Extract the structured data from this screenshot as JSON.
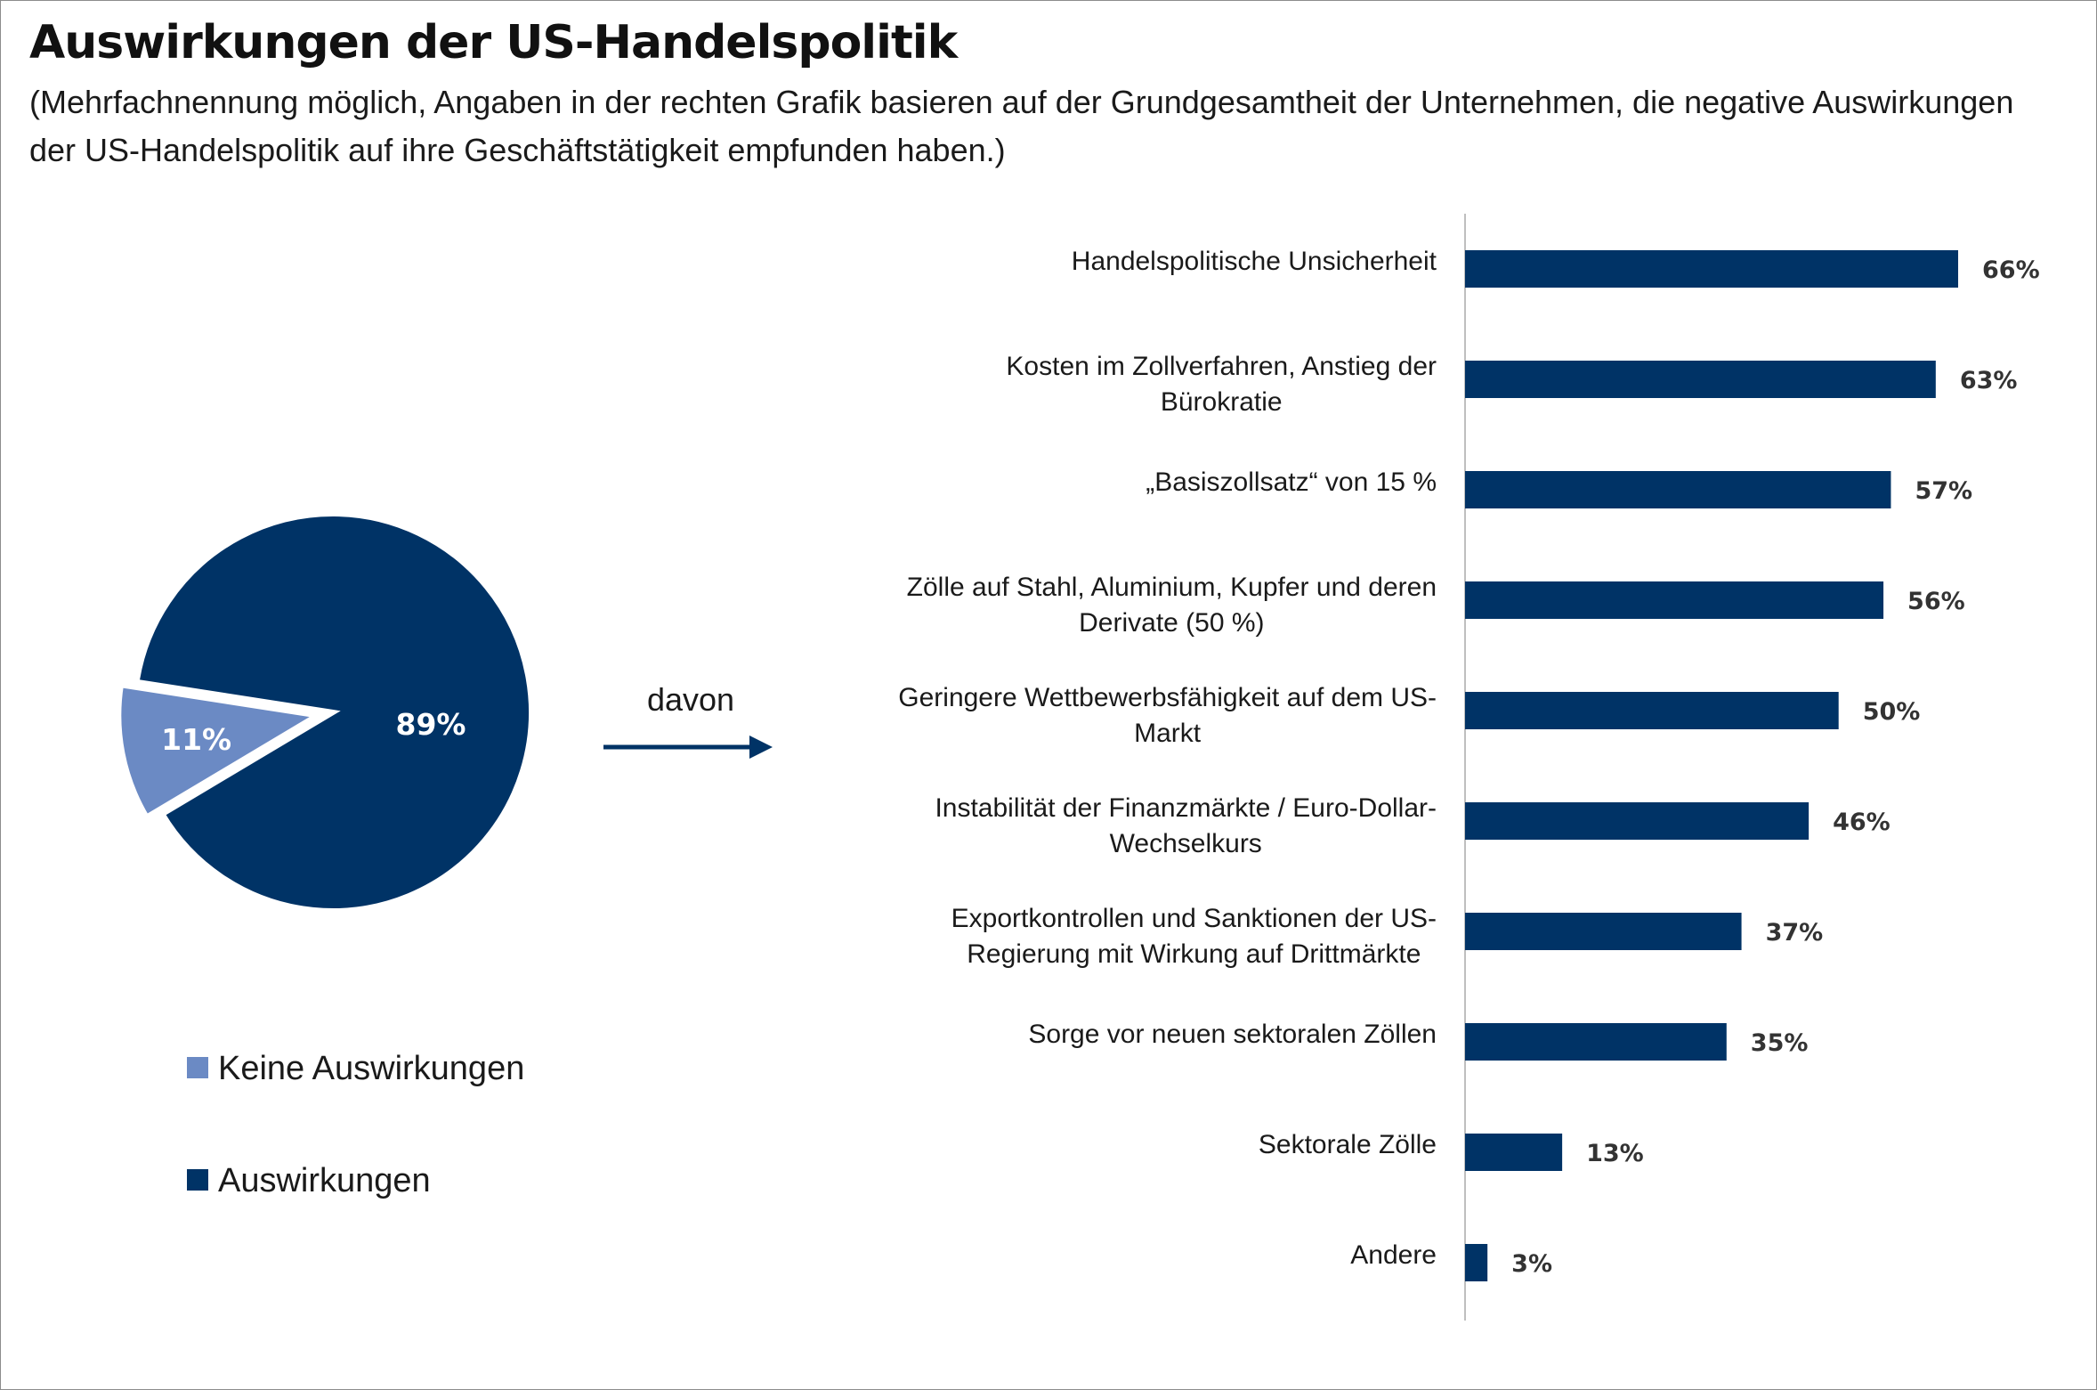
{
  "title": "Auswirkungen der US-Handelspolitik",
  "subtitle": "(Mehrfachnennung möglich, Angaben in der rechten Grafik basieren auf der Grundgesamtheit der Unternehmen, die negative Auswirkungen der US-Handelspolitik auf ihre Geschäftstätigkeit empfunden haben.)",
  "arrow_label": "davon",
  "colors": {
    "dark_navy": "#003366",
    "light_blue": "#6b8ac4",
    "axis": "#bfbfbf"
  },
  "chart_data": [
    {
      "type": "pie",
      "slices": [
        {
          "name": "Keine Auswirkungen",
          "value": 11,
          "label": "11%",
          "color": "#6b8ac4",
          "exploded": true
        },
        {
          "name": "Auswirkungen",
          "value": 89,
          "label": "89%",
          "color": "#003366"
        }
      ],
      "legend": [
        {
          "label": "Keine Auswirkungen",
          "color": "#6b8ac4"
        },
        {
          "label": "Auswirkungen",
          "color": "#003366"
        }
      ],
      "legend_position": "bottom-left"
    },
    {
      "type": "bar",
      "orientation": "horizontal",
      "unit": "%",
      "bar_color": "#003366",
      "xlim": [
        0,
        100
      ],
      "categories": [
        [
          "Handelspolitische Unsicherheit"
        ],
        [
          "Kosten im Zollverfahren, Anstieg der",
          "Bürokratie"
        ],
        [
          "„Basiszollsatz“ von 15 %"
        ],
        [
          "Zölle auf Stahl, Aluminium, Kupfer und deren",
          "Derivate (50 %)"
        ],
        [
          "Geringere Wettbewerbsfähigkeit auf dem US-",
          "Markt"
        ],
        [
          "Instabilität der Finanzmärkte / Euro-Dollar-",
          "Wechselkurs"
        ],
        [
          "Exportkontrollen und Sanktionen der US-",
          "Regierung mit Wirkung auf Drittmärkte"
        ],
        [
          "Sorge vor neuen sektoralen Zöllen"
        ],
        [
          "Sektorale Zölle"
        ],
        [
          "Andere"
        ]
      ],
      "values": [
        66,
        63,
        57,
        56,
        50,
        46,
        37,
        35,
        13,
        3
      ],
      "value_labels": [
        "66%",
        "63%",
        "57%",
        "56%",
        "50%",
        "46%",
        "37%",
        "35%",
        "13%",
        "3%"
      ]
    }
  ]
}
